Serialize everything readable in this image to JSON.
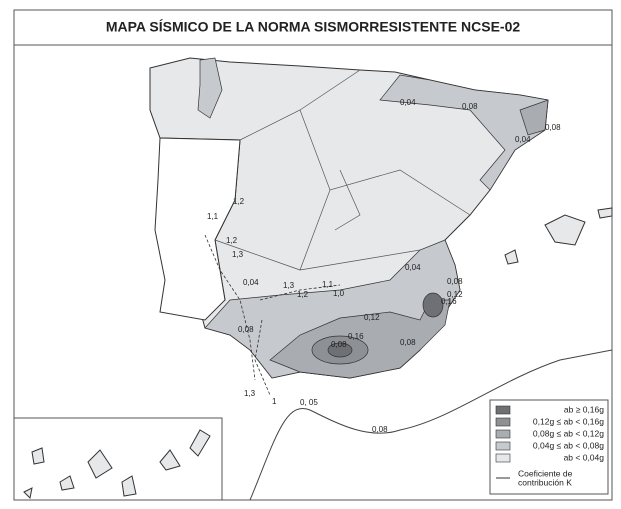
{
  "title": "MAPA SÍSMICO DE LA NORMA SISMORRESISTENTE NCSE-02",
  "legend": {
    "items": [
      {
        "label": "ab ≥ 0,16g",
        "color": "#6e7074"
      },
      {
        "label": "0,12g ≤ ab < 0,16g",
        "color": "#8d9095"
      },
      {
        "label": "0,08g ≤ ab < 0,12g",
        "color": "#a9acb1"
      },
      {
        "label": "0,04g ≤ ab < 0,08g",
        "color": "#c6c9cd"
      },
      {
        "label": "ab < 0,04g",
        "color": "#e6e8ea"
      }
    ],
    "line_item": [
      "Coeficiente de",
      "contribución K"
    ]
  },
  "contour_labels": [
    "0,04",
    "0,08",
    "0,04",
    "0,08",
    "1,1",
    "1,2",
    "1,2",
    "1,3",
    "0,04",
    "1,3",
    "1,1",
    "1,2",
    "1,0",
    "0,04",
    "0,08",
    "0,12",
    "0,16",
    "0,08",
    "0,08",
    "0,08",
    "0,12",
    "0,16",
    "1,3",
    "1",
    "0, 05",
    "0,08"
  ]
}
